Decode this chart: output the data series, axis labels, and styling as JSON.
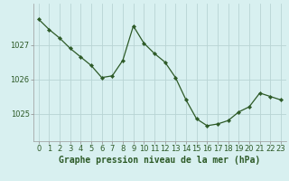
{
  "x": [
    0,
    1,
    2,
    3,
    4,
    5,
    6,
    7,
    8,
    9,
    10,
    11,
    12,
    13,
    14,
    15,
    16,
    17,
    18,
    19,
    20,
    21,
    22,
    23
  ],
  "y": [
    1027.75,
    1027.45,
    1027.2,
    1026.9,
    1026.65,
    1026.4,
    1026.05,
    1026.1,
    1026.55,
    1027.55,
    1027.05,
    1026.75,
    1026.5,
    1026.05,
    1025.4,
    1024.85,
    1024.65,
    1024.7,
    1024.8,
    1025.05,
    1025.2,
    1025.6,
    1025.5,
    1025.4
  ],
  "line_color": "#2d5a27",
  "marker_color": "#2d5a27",
  "bg_color": "#d8f0f0",
  "grid_color": "#b8d4d4",
  "xlabel": "Graphe pression niveau de la mer (hPa)",
  "xlabel_fontsize": 7.0,
  "tick_fontsize": 6.0,
  "ytick_labels": [
    "1025",
    "1026",
    "1027"
  ],
  "ytick_vals": [
    1025,
    1026,
    1027
  ],
  "ylim": [
    1024.2,
    1028.2
  ],
  "xlim": [
    -0.5,
    23.5
  ],
  "xticks": [
    0,
    1,
    2,
    3,
    4,
    5,
    6,
    7,
    8,
    9,
    10,
    11,
    12,
    13,
    14,
    15,
    16,
    17,
    18,
    19,
    20,
    21,
    22,
    23
  ]
}
